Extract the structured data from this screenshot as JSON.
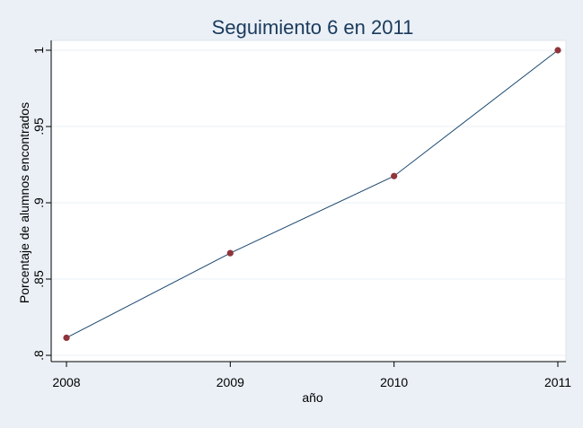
{
  "chart_data": {
    "type": "line",
    "title": "Seguimiento 6 en 2011",
    "xlabel": "año",
    "ylabel": "Porcentaje de alumnos encontrados",
    "x": [
      2008,
      2009,
      2010,
      2011
    ],
    "series": [
      {
        "values": [
          0.8115,
          0.867,
          0.9175,
          1.0
        ]
      }
    ],
    "xlim": [
      2008,
      2011
    ],
    "ylim": [
      0.8,
      1.0
    ],
    "xticks": [
      2008,
      2009,
      2010,
      2011
    ],
    "xtick_labels": [
      "2008",
      "2009",
      "2010",
      "2011"
    ],
    "yticks": [
      0.8,
      0.85,
      0.9,
      0.95,
      1.0
    ],
    "ytick_labels": [
      ".8",
      ".85",
      ".9",
      ".95",
      "1"
    ],
    "grid": true,
    "legend": "none",
    "colors": {
      "background": "#eaf0f6",
      "plot_background": "#ffffff",
      "line": "#1a476f",
      "marker": "#90353b",
      "grid": "#eaf0f6",
      "text": "#000000",
      "title": "#1a3a5c"
    }
  }
}
